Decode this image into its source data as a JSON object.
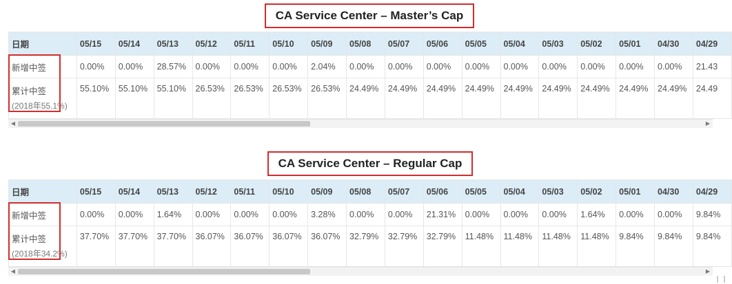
{
  "tables": [
    {
      "title": "CA Service Center – Master’s Cap",
      "header_label": "日期",
      "dates": [
        "05/15",
        "05/14",
        "05/13",
        "05/12",
        "05/11",
        "05/10",
        "05/09",
        "05/08",
        "05/07",
        "05/06",
        "05/05",
        "05/04",
        "05/03",
        "05/02",
        "05/01",
        "04/30",
        "04/29"
      ],
      "rows": [
        {
          "label": "新增中签",
          "note": "",
          "values": [
            "0.00%",
            "0.00%",
            "28.57%",
            "0.00%",
            "0.00%",
            "0.00%",
            "2.04%",
            "0.00%",
            "0.00%",
            "0.00%",
            "0.00%",
            "0.00%",
            "0.00%",
            "0.00%",
            "0.00%",
            "0.00%",
            "21.43"
          ]
        },
        {
          "label": "累计中签",
          "note": "(2018年55.1%)",
          "values": [
            "55.10%",
            "55.10%",
            "55.10%",
            "26.53%",
            "26.53%",
            "26.53%",
            "26.53%",
            "24.49%",
            "24.49%",
            "24.49%",
            "24.49%",
            "24.49%",
            "24.49%",
            "24.49%",
            "24.49%",
            "24.49%",
            "24.49"
          ]
        }
      ]
    },
    {
      "title": "CA Service Center – Regular Cap",
      "header_label": "日期",
      "dates": [
        "05/15",
        "05/14",
        "05/13",
        "05/12",
        "05/11",
        "05/10",
        "05/09",
        "05/08",
        "05/07",
        "05/06",
        "05/05",
        "05/04",
        "05/03",
        "05/02",
        "05/01",
        "04/30",
        "04/29"
      ],
      "rows": [
        {
          "label": "新增中签",
          "note": "",
          "values": [
            "0.00%",
            "0.00%",
            "1.64%",
            "0.00%",
            "0.00%",
            "0.00%",
            "3.28%",
            "0.00%",
            "0.00%",
            "21.31%",
            "0.00%",
            "0.00%",
            "0.00%",
            "1.64%",
            "0.00%",
            "0.00%",
            "9.84%"
          ]
        },
        {
          "label": "累计中签",
          "note": "(2018年34.2%)",
          "values": [
            "37.70%",
            "37.70%",
            "37.70%",
            "36.07%",
            "36.07%",
            "36.07%",
            "36.07%",
            "32.79%",
            "32.79%",
            "32.79%",
            "11.48%",
            "11.48%",
            "11.48%",
            "11.48%",
            "9.84%",
            "9.84%",
            "9.84%"
          ]
        }
      ]
    }
  ],
  "icons": {
    "scroll_left": "arrow-left-icon",
    "scroll_right": "arrow-right-icon"
  },
  "colors": {
    "header_bg": "#dcedf7",
    "highlight": "#d22c2c"
  }
}
